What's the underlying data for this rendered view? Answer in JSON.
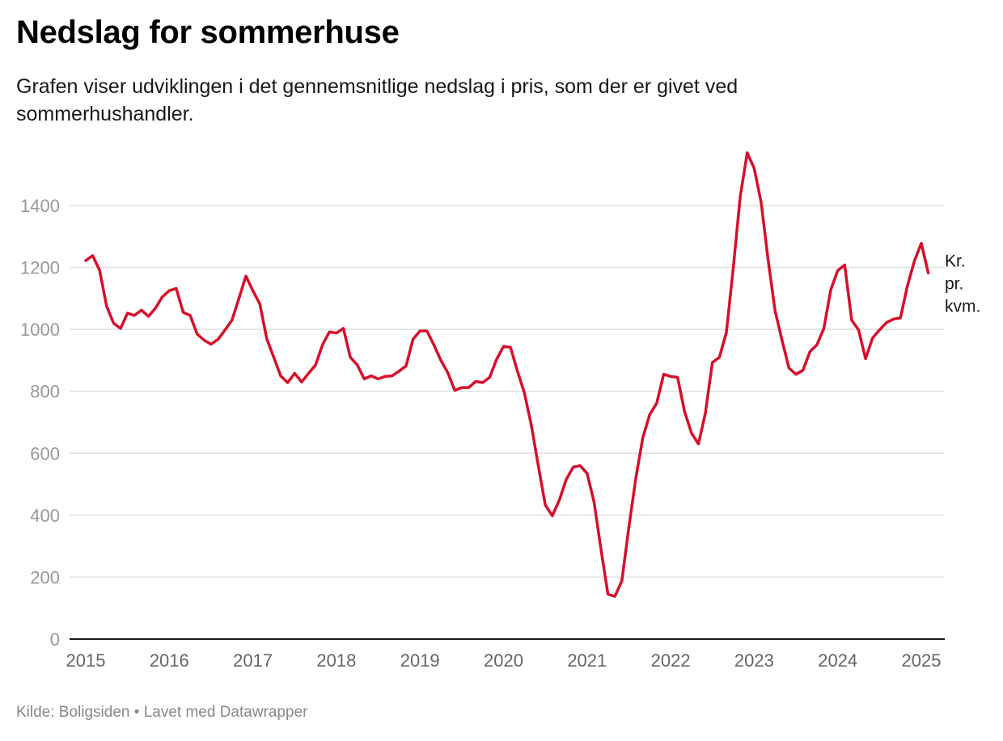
{
  "header": {
    "title": "Nedslag for sommerhuse",
    "subtitle": "Grafen viser udviklingen i det gennemsnitlige nedslag i pris, som der er givet ved sommerhushandler."
  },
  "footer": {
    "source_label": "Kilde: Boligsiden",
    "separator": "•",
    "made_with": "Lavet med Datawrapper"
  },
  "chart_data": {
    "type": "line",
    "title": "Nedslag for sommerhuse",
    "subtitle": "Grafen viser udviklingen i det gennemsnitlige nedslag i pris, som der er givet ved sommerhushandler.",
    "xlabel": "",
    "ylabel": "",
    "x_start": "2015-01",
    "x_step": "month",
    "x_ticks": [
      "2015",
      "2016",
      "2017",
      "2018",
      "2019",
      "2020",
      "2021",
      "2022",
      "2023",
      "2024",
      "2025"
    ],
    "y_ticks": [
      0,
      200,
      400,
      600,
      800,
      1000,
      1200,
      1400
    ],
    "ylim": [
      0,
      1400
    ],
    "grid": true,
    "colors": {
      "line": "#d7102a",
      "grid": "#e1e1e1",
      "axis": "#1a1a1a",
      "tick_label": "#999999",
      "x_tick_label": "#666666"
    },
    "series": [
      {
        "name": "Kr. pr. kvm.",
        "label_lines": [
          "Kr.",
          "pr.",
          "kvm."
        ],
        "values": [
          1222,
          1238,
          1190,
          1075,
          1020,
          1003,
          1052,
          1045,
          1062,
          1042,
          1068,
          1105,
          1125,
          1132,
          1055,
          1045,
          985,
          965,
          952,
          968,
          998,
          1030,
          1100,
          1172,
          1125,
          1082,
          970,
          910,
          850,
          828,
          858,
          830,
          858,
          885,
          950,
          992,
          988,
          1003,
          910,
          885,
          840,
          850,
          840,
          848,
          850,
          865,
          882,
          968,
          995,
          995,
          950,
          900,
          860,
          803,
          812,
          812,
          832,
          828,
          845,
          903,
          945,
          942,
          865,
          795,
          690,
          560,
          433,
          398,
          448,
          515,
          555,
          560,
          535,
          443,
          290,
          145,
          138,
          188,
          360,
          520,
          650,
          725,
          762,
          855,
          848,
          845,
          735,
          665,
          630,
          730,
          893,
          910,
          990,
          1200,
          1430,
          1570,
          1520,
          1410,
          1225,
          1060,
          965,
          875,
          855,
          868,
          928,
          950,
          1003,
          1128,
          1190,
          1208,
          1030,
          998,
          905,
          972,
          998,
          1022,
          1033,
          1037,
          1140,
          1220,
          1278,
          1182
        ]
      }
    ],
    "legend": "inline-right-end"
  }
}
